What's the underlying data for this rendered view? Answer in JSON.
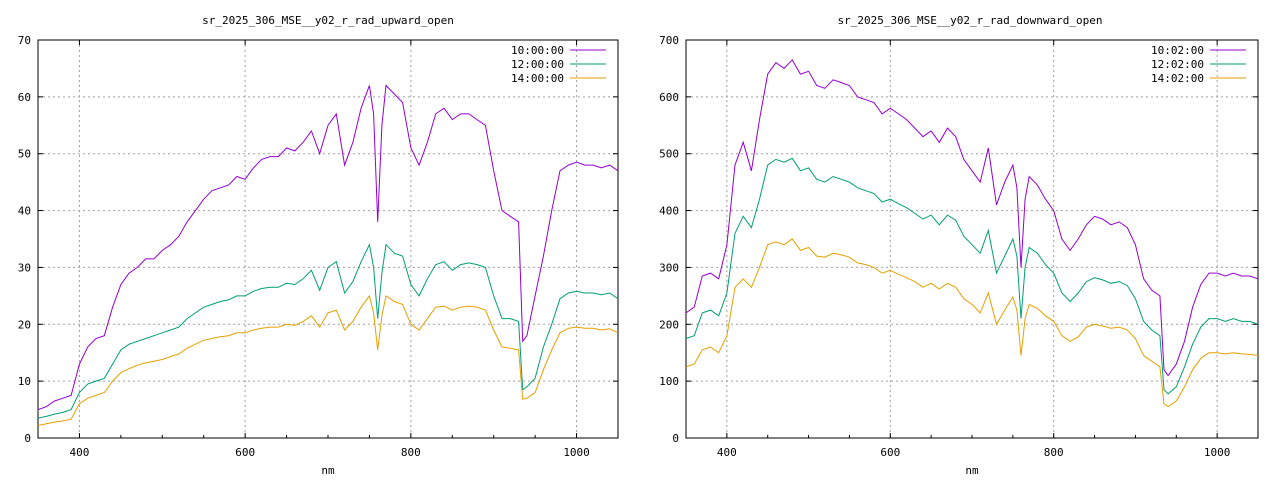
{
  "chart_data": [
    {
      "type": "line",
      "title": "sr_2025_306_MSE__y02_r_rad_upward_open",
      "xlabel": "nm",
      "ylabel": "",
      "xlim": [
        350,
        1050
      ],
      "ylim": [
        0,
        70
      ],
      "xticks": [
        400,
        600,
        800,
        1000
      ],
      "yticks": [
        0,
        10,
        20,
        30,
        40,
        50,
        60,
        70
      ],
      "grid": true,
      "legend_position": "top-right",
      "series": [
        {
          "name": "10:00:00",
          "color": "#9400d3",
          "x": [
            350,
            360,
            370,
            380,
            390,
            400,
            410,
            420,
            430,
            440,
            450,
            460,
            470,
            480,
            490,
            500,
            510,
            520,
            530,
            540,
            550,
            560,
            570,
            580,
            590,
            600,
            610,
            620,
            630,
            640,
            650,
            660,
            670,
            680,
            690,
            700,
            710,
            720,
            730,
            740,
            750,
            755,
            760,
            765,
            770,
            780,
            790,
            800,
            810,
            820,
            830,
            840,
            850,
            860,
            870,
            880,
            890,
            900,
            910,
            920,
            930,
            935,
            940,
            950,
            960,
            970,
            980,
            990,
            1000,
            1010,
            1020,
            1030,
            1040,
            1050
          ],
          "values": [
            5,
            5.5,
            6.5,
            7,
            7.5,
            13,
            16,
            17.5,
            18,
            23,
            27,
            29,
            30,
            31.5,
            31.5,
            33,
            34,
            35.5,
            38,
            40,
            42,
            43.5,
            44,
            44.5,
            46,
            45.5,
            47.5,
            49,
            49.5,
            49.5,
            51,
            50.5,
            52,
            54,
            50,
            55,
            57,
            48,
            52,
            58,
            62,
            57,
            38,
            55,
            62,
            60.5,
            59,
            51,
            48,
            52,
            57,
            58,
            56,
            57,
            57,
            56,
            55,
            47,
            40,
            39,
            38,
            17,
            18,
            25,
            32,
            40,
            47,
            48,
            48.5,
            48,
            48,
            47.5,
            48,
            47
          ]
        },
        {
          "name": "12:00:00",
          "color": "#009e73",
          "x": [
            350,
            360,
            370,
            380,
            390,
            400,
            410,
            420,
            430,
            440,
            450,
            460,
            470,
            480,
            490,
            500,
            510,
            520,
            530,
            540,
            550,
            560,
            570,
            580,
            590,
            600,
            610,
            620,
            630,
            640,
            650,
            660,
            670,
            680,
            690,
            700,
            710,
            720,
            730,
            740,
            750,
            755,
            760,
            765,
            770,
            780,
            790,
            800,
            810,
            820,
            830,
            840,
            850,
            860,
            870,
            880,
            890,
            900,
            910,
            920,
            930,
            935,
            940,
            950,
            960,
            970,
            980,
            990,
            1000,
            1010,
            1020,
            1030,
            1040,
            1050
          ],
          "values": [
            3.5,
            3.8,
            4.2,
            4.5,
            5,
            8,
            9.5,
            10,
            10.5,
            13,
            15.5,
            16.5,
            17,
            17.5,
            18,
            18.5,
            19,
            19.5,
            21,
            22,
            23,
            23.5,
            24,
            24.3,
            25,
            25,
            25.8,
            26.3,
            26.5,
            26.5,
            27.2,
            27,
            28,
            29.5,
            26,
            30,
            31,
            25.5,
            27.5,
            31,
            34,
            30,
            21,
            29,
            34,
            32.5,
            32,
            27,
            25,
            28,
            30.5,
            31,
            29.5,
            30.5,
            30.8,
            30.5,
            30,
            25,
            21,
            21,
            20.5,
            8.5,
            9,
            10.5,
            16,
            20,
            24.5,
            25.5,
            25.8,
            25.5,
            25.5,
            25.2,
            25.5,
            24.5
          ]
        },
        {
          "name": "14:00:00",
          "color": "#e69f00",
          "x": [
            350,
            360,
            370,
            380,
            390,
            400,
            410,
            420,
            430,
            440,
            450,
            460,
            470,
            480,
            490,
            500,
            510,
            520,
            530,
            540,
            550,
            560,
            570,
            580,
            590,
            600,
            610,
            620,
            630,
            640,
            650,
            660,
            670,
            680,
            690,
            700,
            710,
            720,
            730,
            740,
            750,
            755,
            760,
            765,
            770,
            780,
            790,
            800,
            810,
            820,
            830,
            840,
            850,
            860,
            870,
            880,
            890,
            900,
            910,
            920,
            930,
            935,
            940,
            950,
            960,
            970,
            980,
            990,
            1000,
            1010,
            1020,
            1030,
            1040,
            1050
          ],
          "values": [
            2.2,
            2.5,
            2.8,
            3,
            3.3,
            6,
            7,
            7.5,
            8,
            10,
            11.5,
            12.2,
            12.8,
            13.2,
            13.5,
            13.8,
            14.3,
            14.8,
            15.8,
            16.5,
            17.2,
            17.5,
            17.8,
            18,
            18.5,
            18.5,
            19,
            19.3,
            19.5,
            19.5,
            20,
            19.8,
            20.5,
            21.5,
            19.5,
            22,
            22.5,
            19,
            20.5,
            23,
            25,
            22,
            15.5,
            21.5,
            25,
            24,
            23.5,
            20,
            19,
            21,
            23,
            23.2,
            22.5,
            23,
            23.2,
            23,
            22.5,
            19,
            16,
            15.8,
            15.5,
            6.8,
            7,
            8,
            12,
            15.5,
            18.5,
            19.3,
            19.5,
            19.3,
            19.3,
            19,
            19.2,
            18.5
          ]
        }
      ]
    },
    {
      "type": "line",
      "title": "sr_2025_306_MSE__y02_r_rad_downward_open",
      "xlabel": "nm",
      "ylabel": "",
      "xlim": [
        350,
        1050
      ],
      "ylim": [
        0,
        700
      ],
      "xticks": [
        400,
        600,
        800,
        1000
      ],
      "yticks": [
        0,
        100,
        200,
        300,
        400,
        500,
        600,
        700
      ],
      "grid": true,
      "legend_position": "top-right",
      "series": [
        {
          "name": "10:02:00",
          "color": "#9400d3",
          "x": [
            350,
            360,
            370,
            380,
            390,
            400,
            410,
            420,
            430,
            440,
            450,
            460,
            470,
            480,
            490,
            500,
            510,
            520,
            530,
            540,
            550,
            560,
            570,
            580,
            590,
            600,
            610,
            620,
            630,
            640,
            650,
            660,
            670,
            680,
            690,
            700,
            710,
            720,
            730,
            740,
            750,
            755,
            760,
            765,
            770,
            780,
            790,
            800,
            810,
            820,
            830,
            840,
            850,
            860,
            870,
            880,
            890,
            900,
            910,
            920,
            930,
            935,
            940,
            950,
            960,
            970,
            980,
            990,
            1000,
            1010,
            1020,
            1030,
            1040,
            1050
          ],
          "values": [
            220,
            230,
            285,
            290,
            280,
            340,
            480,
            520,
            470,
            560,
            640,
            660,
            650,
            665,
            640,
            645,
            620,
            615,
            630,
            625,
            620,
            600,
            595,
            590,
            570,
            580,
            570,
            560,
            545,
            530,
            540,
            520,
            545,
            530,
            490,
            470,
            450,
            510,
            410,
            450,
            480,
            440,
            300,
            420,
            460,
            445,
            420,
            400,
            350,
            330,
            350,
            375,
            390,
            385,
            375,
            380,
            370,
            340,
            280,
            260,
            250,
            120,
            110,
            130,
            170,
            230,
            270,
            290,
            290,
            285,
            290,
            285,
            285,
            280
          ]
        },
        {
          "name": "12:02:00",
          "color": "#009e73",
          "x": [
            350,
            360,
            370,
            380,
            390,
            400,
            410,
            420,
            430,
            440,
            450,
            460,
            470,
            480,
            490,
            500,
            510,
            520,
            530,
            540,
            550,
            560,
            570,
            580,
            590,
            600,
            610,
            620,
            630,
            640,
            650,
            660,
            670,
            680,
            690,
            700,
            710,
            720,
            730,
            740,
            750,
            755,
            760,
            765,
            770,
            780,
            790,
            800,
            810,
            820,
            830,
            840,
            850,
            860,
            870,
            880,
            890,
            900,
            910,
            920,
            930,
            935,
            940,
            950,
            960,
            970,
            980,
            990,
            1000,
            1010,
            1020,
            1030,
            1040,
            1050
          ],
          "values": [
            175,
            180,
            220,
            225,
            215,
            255,
            360,
            390,
            370,
            420,
            480,
            490,
            485,
            492,
            470,
            475,
            455,
            450,
            460,
            455,
            450,
            440,
            435,
            430,
            415,
            420,
            412,
            405,
            395,
            385,
            392,
            375,
            392,
            383,
            355,
            340,
            325,
            365,
            290,
            320,
            350,
            320,
            210,
            300,
            335,
            325,
            305,
            290,
            255,
            240,
            255,
            275,
            282,
            278,
            272,
            275,
            268,
            245,
            205,
            190,
            180,
            85,
            78,
            90,
            125,
            165,
            195,
            210,
            210,
            205,
            210,
            205,
            205,
            200
          ]
        },
        {
          "name": "14:02:00",
          "color": "#e69f00",
          "x": [
            350,
            360,
            370,
            380,
            390,
            400,
            410,
            420,
            430,
            440,
            450,
            460,
            470,
            480,
            490,
            500,
            510,
            520,
            530,
            540,
            550,
            560,
            570,
            580,
            590,
            600,
            610,
            620,
            630,
            640,
            650,
            660,
            670,
            680,
            690,
            700,
            710,
            720,
            730,
            740,
            750,
            755,
            760,
            765,
            770,
            780,
            790,
            800,
            810,
            820,
            830,
            840,
            850,
            860,
            870,
            880,
            890,
            900,
            910,
            920,
            930,
            935,
            940,
            950,
            960,
            970,
            980,
            990,
            1000,
            1010,
            1020,
            1030,
            1040,
            1050
          ],
          "values": [
            125,
            130,
            155,
            160,
            150,
            180,
            265,
            280,
            265,
            300,
            340,
            345,
            340,
            350,
            330,
            335,
            320,
            318,
            325,
            322,
            318,
            308,
            305,
            300,
            290,
            295,
            288,
            282,
            275,
            265,
            272,
            262,
            272,
            265,
            245,
            235,
            220,
            255,
            200,
            225,
            248,
            225,
            145,
            210,
            235,
            228,
            215,
            205,
            180,
            170,
            178,
            195,
            200,
            197,
            193,
            195,
            190,
            175,
            145,
            135,
            125,
            60,
            55,
            65,
            90,
            120,
            140,
            150,
            150,
            148,
            150,
            148,
            147,
            145
          ]
        }
      ]
    }
  ]
}
